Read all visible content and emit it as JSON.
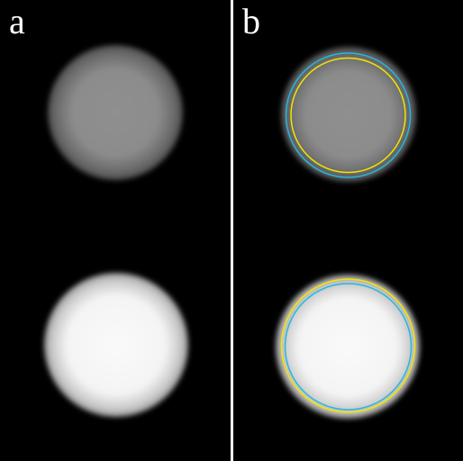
{
  "panels": [
    {
      "label": "a"
    },
    {
      "label": "b"
    }
  ],
  "colors": {
    "background": "#000000",
    "divider": "#ffffff",
    "label": "#ffffff",
    "contour_cyan": "#22b8e0",
    "contour_yellow": "#f2e600"
  }
}
